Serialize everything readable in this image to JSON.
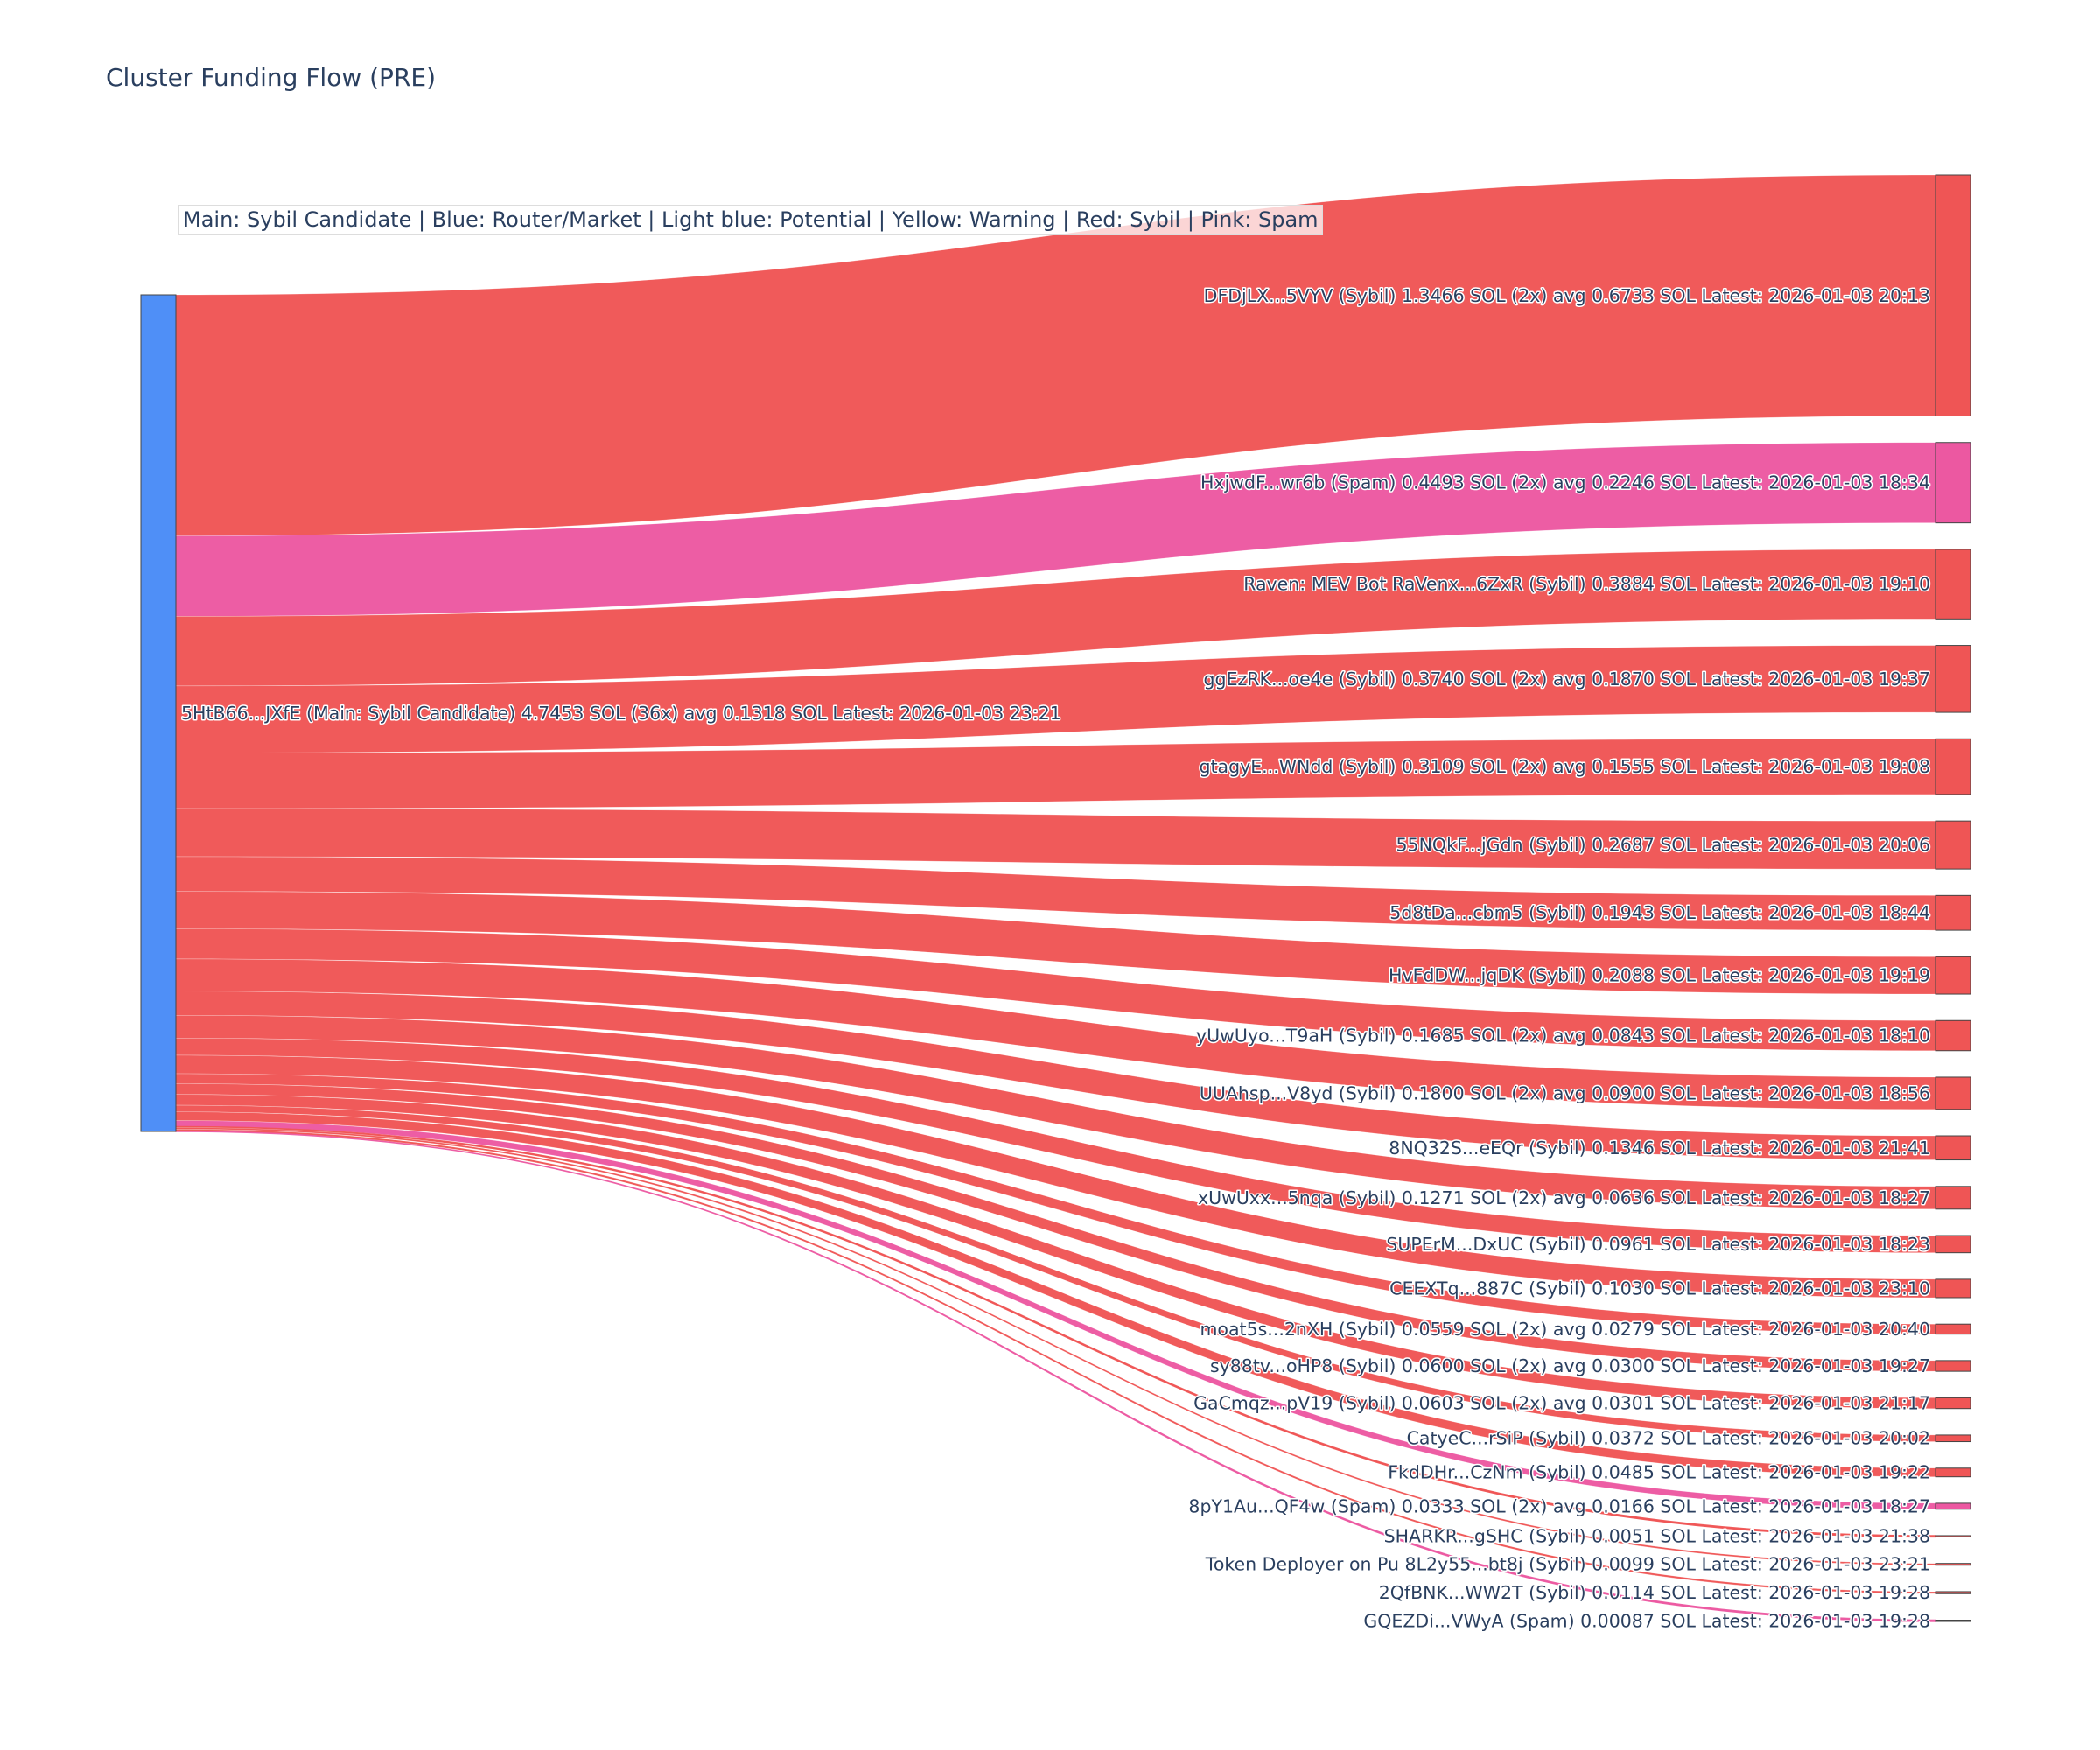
{
  "title": "Cluster Funding Flow (PRE)",
  "legend_note": "Main: Sybil Candidate  |  Blue: Router/Market | Light blue: Potential | Yellow: Warning | Red: Sybil | Pink: Spam",
  "colors": {
    "main": "#4f8ff7",
    "sybil": "#ef5555",
    "spam": "#ec58a1",
    "node_border": "#444444"
  },
  "chart_data": {
    "type": "sankey",
    "source": {
      "label": "5HtB66...JXfE (Main: Sybil Candidate) 4.7453 SOL (36x) avg 0.1318 SOL Latest: 2026-01-03 23:21",
      "category": "main",
      "value": 4.7453
    },
    "targets": [
      {
        "label": "DFDjLX...5VYV (Sybil) 1.3466 SOL (2x) avg 0.6733 SOL Latest: 2026-01-03 20:13",
        "category": "sybil",
        "value": 1.3466
      },
      {
        "label": "HxjwdF...wr6b (Spam) 0.4493 SOL (2x) avg 0.2246 SOL Latest: 2026-01-03 18:34",
        "category": "spam",
        "value": 0.4493
      },
      {
        "label": "Raven: MEV Bot RaVenx...6ZxR (Sybil) 0.3884 SOL Latest: 2026-01-03 19:10",
        "category": "sybil",
        "value": 0.3884
      },
      {
        "label": "ggEzRK...oe4e (Sybil) 0.3740 SOL (2x) avg 0.1870 SOL Latest: 2026-01-03 19:37",
        "category": "sybil",
        "value": 0.374
      },
      {
        "label": "gtagyE...WNdd (Sybil) 0.3109 SOL (2x) avg 0.1555 SOL Latest: 2026-01-03 19:08",
        "category": "sybil",
        "value": 0.3109
      },
      {
        "label": "55NQkF...jGdn (Sybil) 0.2687 SOL Latest: 2026-01-03 20:06",
        "category": "sybil",
        "value": 0.2687
      },
      {
        "label": "5d8tDa...cbm5 (Sybil) 0.1943 SOL Latest: 2026-01-03 18:44",
        "category": "sybil",
        "value": 0.1943
      },
      {
        "label": "HvFdDW...jqDK (Sybil) 0.2088 SOL Latest: 2026-01-03 19:19",
        "category": "sybil",
        "value": 0.2088
      },
      {
        "label": "yUwUyo...T9aH (Sybil) 0.1685 SOL (2x) avg 0.0843 SOL Latest: 2026-01-03 18:10",
        "category": "sybil",
        "value": 0.1685
      },
      {
        "label": "UUAhsp...V8yd (Sybil) 0.1800 SOL (2x) avg 0.0900 SOL Latest: 2026-01-03 18:56",
        "category": "sybil",
        "value": 0.18
      },
      {
        "label": "8NQ32S...eEQr (Sybil) 0.1346 SOL Latest: 2026-01-03 21:41",
        "category": "sybil",
        "value": 0.1346
      },
      {
        "label": "xUwUxx...5nqa (Sybil) 0.1271 SOL (2x) avg 0.0636 SOL Latest: 2026-01-03 18:27",
        "category": "sybil",
        "value": 0.1271
      },
      {
        "label": "SUPErM...DxUC (Sybil) 0.0961 SOL Latest: 2026-01-03 18:23",
        "category": "sybil",
        "value": 0.0961
      },
      {
        "label": "CEEXTq...887C (Sybil) 0.1030 SOL Latest: 2026-01-03 23:10",
        "category": "sybil",
        "value": 0.103
      },
      {
        "label": "moat5s...2nXH (Sybil) 0.0559 SOL (2x) avg 0.0279 SOL Latest: 2026-01-03 20:40",
        "category": "sybil",
        "value": 0.0559
      },
      {
        "label": "sy88tv...oHP8 (Sybil) 0.0600 SOL (2x) avg 0.0300 SOL Latest: 2026-01-03 19:27",
        "category": "sybil",
        "value": 0.06
      },
      {
        "label": "GaCmqz...pV19 (Sybil) 0.0603 SOL (2x) avg 0.0301 SOL Latest: 2026-01-03 21:17",
        "category": "sybil",
        "value": 0.0603
      },
      {
        "label": "CatyeC...rSiP (Sybil) 0.0372 SOL Latest: 2026-01-03 20:02",
        "category": "sybil",
        "value": 0.0372
      },
      {
        "label": "FkdDHr...CzNm (Sybil) 0.0485 SOL Latest: 2026-01-03 19:22",
        "category": "sybil",
        "value": 0.0485
      },
      {
        "label": "8pY1Au...QF4w (Spam) 0.0333 SOL (2x) avg 0.0166 SOL Latest: 2026-01-03 18:27",
        "category": "spam",
        "value": 0.0333
      },
      {
        "label": "SHARKR...gSHC (Sybil) 0.0051 SOL Latest: 2026-01-03 21:38",
        "category": "sybil",
        "value": 0.0051
      },
      {
        "label": "Token Deployer on Pu 8L2y55...bt8j (Sybil) 0.0099 SOL Latest: 2026-01-03 23:21",
        "category": "sybil",
        "value": 0.0099
      },
      {
        "label": "2QfBNK...WW2T (Sybil) 0.0114 SOL Latest: 2026-01-03 19:28",
        "category": "sybil",
        "value": 0.0114
      },
      {
        "label": "GQEZDi...VWyA (Spam) 0.00087 SOL Latest: 2026-01-03 19:28",
        "category": "spam",
        "value": 0.00087
      }
    ]
  }
}
